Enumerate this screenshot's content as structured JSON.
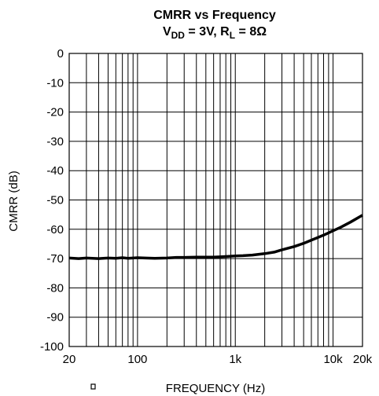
{
  "chart_data": {
    "type": "line",
    "title": "CMRR vs Frequency",
    "subtitle": {
      "prefix": "V",
      "prefix_sub": "DD",
      "middle": " = 3V, R",
      "middle_sub": "L",
      "suffix": " = 8Ω"
    },
    "xlabel": "FREQUENCY (Hz)",
    "ylabel": "CMRR (dB)",
    "x_scale": "log",
    "xlim": [
      20,
      20000
    ],
    "ylim": [
      -100,
      0
    ],
    "x_tick_labels": [
      {
        "value": 20,
        "label": "20"
      },
      {
        "value": 100,
        "label": "100"
      },
      {
        "value": 1000,
        "label": "1k"
      },
      {
        "value": 10000,
        "label": "10k"
      },
      {
        "value": 20000,
        "label": "20k"
      }
    ],
    "y_ticks": [
      0,
      -10,
      -20,
      -30,
      -40,
      -50,
      -60,
      -70,
      -80,
      -90,
      -100
    ],
    "grid": true,
    "line_color": "#000000",
    "series": [
      {
        "x": [
          20,
          25,
          30,
          40,
          50,
          60,
          70,
          80,
          100,
          120,
          150,
          200,
          250,
          300,
          400,
          500,
          600,
          700,
          800,
          1000,
          1200,
          1500,
          2000,
          2500,
          3000,
          4000,
          5000,
          6000,
          7000,
          8000,
          10000,
          12000,
          15000,
          20000
        ],
        "values": [
          -69.8,
          -70.0,
          -69.8,
          -70.0,
          -69.8,
          -69.9,
          -69.7,
          -69.9,
          -69.7,
          -69.8,
          -69.9,
          -69.8,
          -69.6,
          -69.6,
          -69.5,
          -69.5,
          -69.5,
          -69.4,
          -69.3,
          -69.1,
          -69.0,
          -68.8,
          -68.3,
          -67.8,
          -67.0,
          -65.9,
          -64.8,
          -63.7,
          -62.8,
          -62.0,
          -60.5,
          -59.3,
          -57.6,
          -55.2
        ]
      }
    ]
  }
}
